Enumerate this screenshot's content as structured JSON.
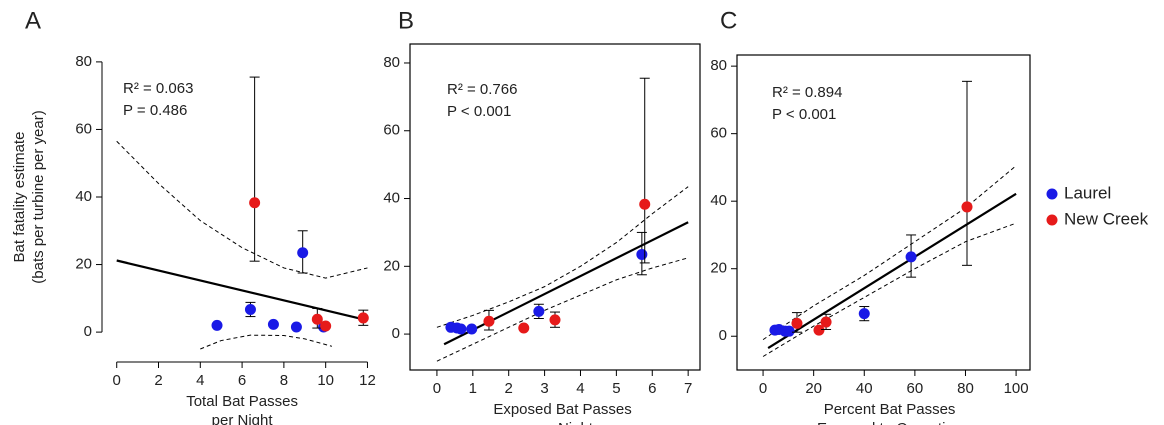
{
  "chart_data": [
    {
      "type": "scatter",
      "label": "A",
      "frame": false,
      "ylabel": [
        "Bat fatality estimate",
        "(bats per turbine per year)"
      ],
      "xlabel": [
        "Total Bat Passes",
        "per Night"
      ],
      "annotations": [
        "R² = 0.063",
        "P = 0.486"
      ],
      "xlim": [
        -0.8,
        12.6
      ],
      "ylim": [
        -5,
        85
      ],
      "xticks": [
        0,
        2,
        4,
        6,
        8,
        10,
        12
      ],
      "yticks": [
        0,
        20,
        40,
        60,
        80
      ],
      "series": [
        {
          "name": "Laurel",
          "color": "#1a1ae6",
          "x": [
            4.8,
            6.4,
            7.5,
            8.6,
            8.9,
            9.9
          ],
          "values": [
            2,
            6.7,
            2.3,
            1.5,
            23.5,
            1.5
          ],
          "lower": [
            null,
            4.6,
            null,
            null,
            17.5,
            null
          ],
          "upper": [
            null,
            8.8,
            null,
            null,
            30,
            null
          ]
        },
        {
          "name": "New Creek",
          "color": "#e61a1a",
          "x": [
            6.6,
            9.6,
            10.0,
            11.8
          ],
          "values": [
            38.3,
            3.8,
            1.8,
            4.2
          ],
          "lower": [
            21,
            1.2,
            null,
            2
          ],
          "upper": [
            75.5,
            7,
            null,
            6.5
          ]
        }
      ],
      "fit": {
        "x": [
          0,
          12
        ],
        "values": [
          21.2,
          3.5
        ]
      },
      "band_upper": {
        "x": [
          0,
          2,
          4,
          6,
          8,
          10,
          12
        ],
        "values": [
          56.5,
          44,
          33,
          25,
          19,
          16,
          19
        ]
      },
      "band_lower": {
        "x": [
          4.0,
          5,
          6.4,
          8,
          9,
          10.3
        ],
        "values": [
          -5,
          -2.5,
          -0.9,
          -1,
          -2,
          -4.2
        ]
      }
    },
    {
      "type": "scatter",
      "label": "B",
      "frame": true,
      "xlabel": [
        "Exposed Bat Passes",
        "per Night"
      ],
      "annotations": [
        "R² = 0.766",
        "P < 0.001"
      ],
      "xlim": [
        -0.75,
        7.33
      ],
      "ylim": [
        -10.6,
        85.6
      ],
      "xticks": [
        0,
        1,
        2,
        3,
        4,
        5,
        6,
        7
      ],
      "yticks": [
        0,
        20,
        40,
        60,
        80
      ],
      "series": [
        {
          "name": "Laurel",
          "color": "#1a1ae6",
          "x": [
            0.39,
            0.56,
            0.67,
            0.97,
            2.84,
            5.71
          ],
          "values": [
            2,
            1.8,
            1.5,
            1.5,
            6.7,
            23.5
          ],
          "lower": [
            null,
            null,
            null,
            null,
            4.6,
            17.5
          ],
          "upper": [
            null,
            null,
            null,
            null,
            8.8,
            30
          ]
        },
        {
          "name": "New Creek",
          "color": "#e61a1a",
          "x": [
            1.45,
            2.42,
            3.29,
            5.79
          ],
          "values": [
            3.8,
            1.8,
            4.2,
            38.3
          ],
          "lower": [
            1.2,
            null,
            2,
            21
          ],
          "upper": [
            7,
            null,
            6.5,
            75.5
          ]
        }
      ],
      "fit": {
        "x": [
          0.2,
          7
        ],
        "values": [
          -3,
          33
        ]
      },
      "band_upper": {
        "x": [
          0,
          1,
          2,
          3,
          4,
          5,
          6,
          7
        ],
        "values": [
          2,
          5.5,
          9.5,
          14,
          20,
          27,
          35.5,
          43.5
        ]
      },
      "band_lower": {
        "x": [
          0,
          1,
          2,
          3,
          4,
          5,
          6,
          7
        ],
        "values": [
          -8,
          -3,
          2,
          7,
          11.5,
          16,
          19.5,
          22.5
        ]
      }
    },
    {
      "type": "scatter",
      "label": "C",
      "frame": true,
      "xlabel": [
        "Percent Bat Passes",
        "Exposed to Operation"
      ],
      "annotations": [
        "R² = 0.894",
        "P < 0.001"
      ],
      "xlim": [
        -10.3,
        105.5
      ],
      "ylim": [
        -10,
        83.3
      ],
      "xticks": [
        0,
        20,
        40,
        60,
        80,
        100
      ],
      "yticks": [
        0,
        20,
        40,
        60,
        80
      ],
      "series": [
        {
          "name": "Laurel",
          "color": "#1a1ae6",
          "x": [
            4.7,
            6.3,
            8.7,
            10.3,
            40,
            58.5
          ],
          "values": [
            1.8,
            2,
            1.5,
            1.5,
            6.7,
            23.5
          ],
          "lower": [
            null,
            null,
            null,
            null,
            4.6,
            17.5
          ],
          "upper": [
            null,
            null,
            null,
            null,
            8.8,
            30
          ]
        },
        {
          "name": "New Creek",
          "color": "#e61a1a",
          "x": [
            13.4,
            22.1,
            24.9,
            80.6
          ],
          "values": [
            3.8,
            1.8,
            4.2,
            38.3
          ],
          "lower": [
            1.2,
            null,
            2,
            21
          ],
          "upper": [
            7,
            null,
            6.5,
            75.5
          ]
        }
      ],
      "fit": {
        "x": [
          2,
          100
        ],
        "values": [
          -3.5,
          42.2
        ]
      },
      "band_upper": {
        "x": [
          0,
          20,
          40,
          60,
          80,
          100
        ],
        "values": [
          -1,
          9,
          18,
          28,
          38,
          50.5
        ]
      },
      "band_lower": {
        "x": [
          0,
          20,
          40,
          60,
          80,
          100
        ],
        "values": [
          -6,
          3,
          11.5,
          20,
          28,
          33.5
        ]
      },
      "legend": "right"
    }
  ]
}
